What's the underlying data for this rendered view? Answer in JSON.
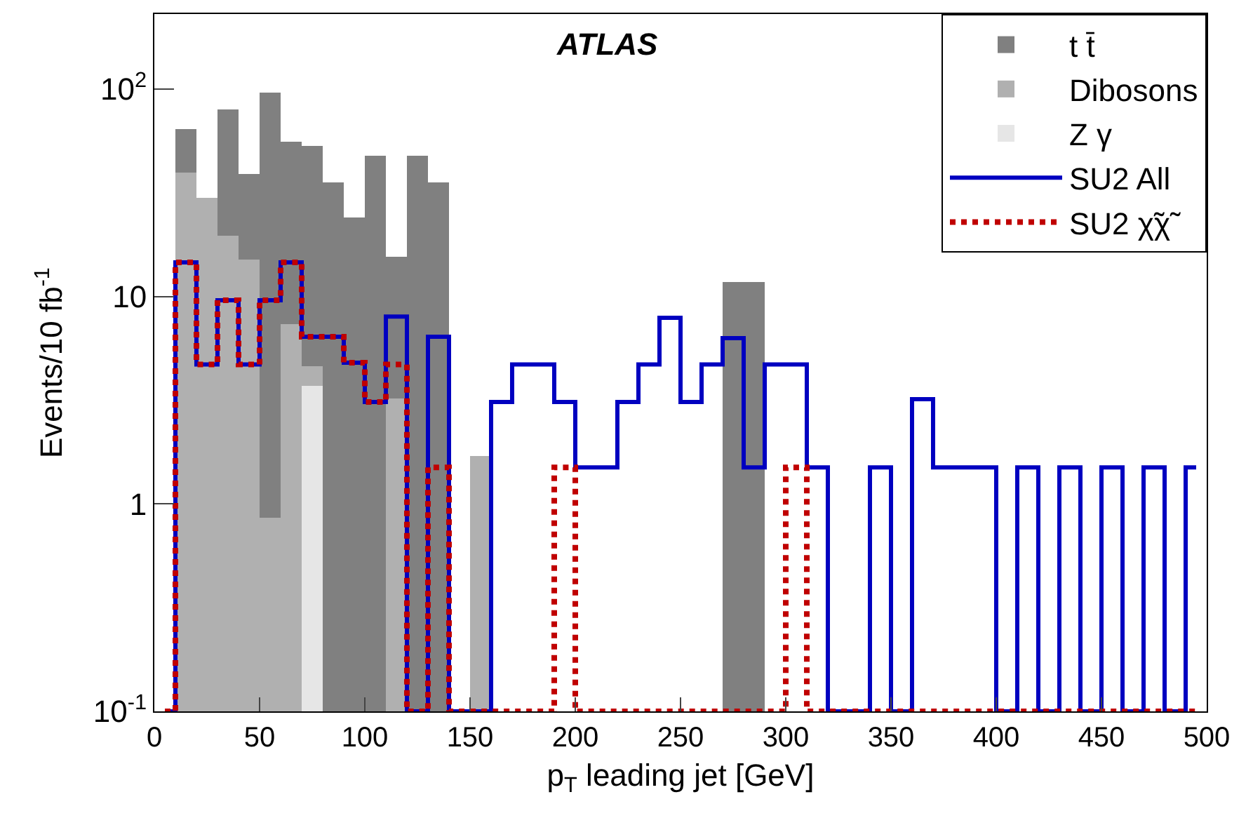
{
  "chart_data": {
    "type": "bar",
    "xlabel": "p$_{T}$ leading jet [GeV]",
    "ylabel": "Events/10 fb$^{-1}$",
    "annotations": [
      "ATLAS"
    ],
    "x": [
      15,
      25,
      35,
      45,
      55,
      65,
      75,
      85,
      95,
      105,
      115,
      125,
      135,
      145,
      155,
      165,
      175,
      185,
      195,
      205,
      215,
      225,
      235,
      245,
      255,
      265,
      275,
      285
    ],
    "stacked": true,
    "log": "y",
    "legend": "top right",
    "xlim": [
      0,
      500
    ],
    "xticks": [
      0,
      50,
      100,
      150,
      200,
      250,
      300,
      350,
      400,
      450,
      500
    ],
    "ylim": [
      0.1,
      230
    ],
    "yticks": [
      {
        "value": 0.1,
        "label": "10$^{-1}$"
      },
      1,
      10,
      {
        "value": 100,
        "label": "10$^{2}$"
      }
    ],
    "series": [
      {
        "name": "Z γ",
        "color": "#e6e6e6",
        "values": [
          null,
          null,
          null,
          null,
          null,
          null,
          3.7,
          null,
          null,
          null,
          null,
          null,
          null,
          null,
          null,
          null,
          null,
          null,
          null,
          null,
          null,
          null,
          null,
          null,
          null,
          null,
          null,
          null
        ]
      },
      {
        "name": "Dibosons",
        "color": "#b0b0b0",
        "values": [
          39.5,
          30,
          19.6,
          15,
          0.86,
          7.4,
          0.9,
          null,
          null,
          null,
          3.2,
          null,
          null,
          null,
          1.7,
          null,
          null,
          null,
          null,
          null,
          null,
          null,
          null,
          null,
          null,
          null,
          null,
          null
        ]
      },
      {
        "name": "t t̄",
        "color": "#808080",
        "values": [
          24.5,
          null,
          60,
          24,
          96,
          48.6,
          48.4,
          35.6,
          23.9,
          48,
          12.3,
          48,
          35.6,
          null,
          null,
          null,
          null,
          null,
          null,
          null,
          null,
          null,
          null,
          null,
          null,
          null,
          11.7,
          11.7
        ]
      },
      {
        "name": "SU2 All",
        "type": "step",
        "color": "#0000c0",
        "line_style": "solid",
        "x": [
          5,
          15,
          25,
          35,
          45,
          55,
          65,
          75,
          85,
          95,
          105,
          115,
          125,
          135,
          145,
          155,
          165,
          175,
          185,
          195,
          205,
          215,
          225,
          235,
          245,
          255,
          265,
          275,
          285,
          295,
          305,
          315,
          325,
          335,
          345,
          355,
          365,
          375,
          385,
          395,
          405,
          415,
          425,
          435,
          445,
          455,
          465,
          475,
          485,
          495
        ],
        "values": [
          0.1,
          14.6,
          4.7,
          9.6,
          4.7,
          9.6,
          14.6,
          6.4,
          6.4,
          4.8,
          3.1,
          8.0,
          0.1,
          6.4,
          0.1,
          0.1,
          3.1,
          4.7,
          4.7,
          3.1,
          1.5,
          1.5,
          3.1,
          4.7,
          7.9,
          3.1,
          4.7,
          6.3,
          1.5,
          4.7,
          4.7,
          1.5,
          0.1,
          0.1,
          1.5,
          0.1,
          3.2,
          1.5,
          1.5,
          1.5,
          0.1,
          1.5,
          0.1,
          1.5,
          0.1,
          1.5,
          0.1,
          1.5,
          0.1,
          1.5
        ]
      },
      {
        "name": "SU2 χ̃χ̃",
        "type": "step",
        "color": "#c00000",
        "line_style": "dotted",
        "x": [
          5,
          15,
          25,
          35,
          45,
          55,
          65,
          75,
          85,
          95,
          105,
          115,
          125,
          135,
          145,
          155,
          165,
          175,
          185,
          195,
          205,
          215,
          225,
          235,
          245,
          255,
          265,
          275,
          285,
          295,
          305,
          315,
          325,
          335,
          345,
          355,
          365,
          375,
          385,
          395,
          405,
          415,
          425,
          435,
          445,
          455,
          465,
          475,
          485,
          495
        ],
        "values": [
          0.1,
          14.6,
          4.7,
          9.6,
          4.7,
          9.6,
          14.6,
          6.4,
          6.4,
          4.8,
          3.1,
          4.7,
          0.1,
          1.5,
          0.1,
          0.1,
          0.1,
          0.1,
          0.1,
          1.5,
          0.1,
          0.1,
          0.1,
          0.1,
          0.1,
          0.1,
          0.1,
          0.1,
          0.1,
          0.1,
          1.5,
          0.1,
          0.1,
          0.1,
          0.1,
          0.1,
          0.1,
          0.1,
          0.1,
          0.1,
          0.1,
          0.1,
          0.1,
          0.1,
          0.1,
          0.1,
          0.1,
          0.1,
          0.1,
          0.1
        ]
      }
    ]
  }
}
